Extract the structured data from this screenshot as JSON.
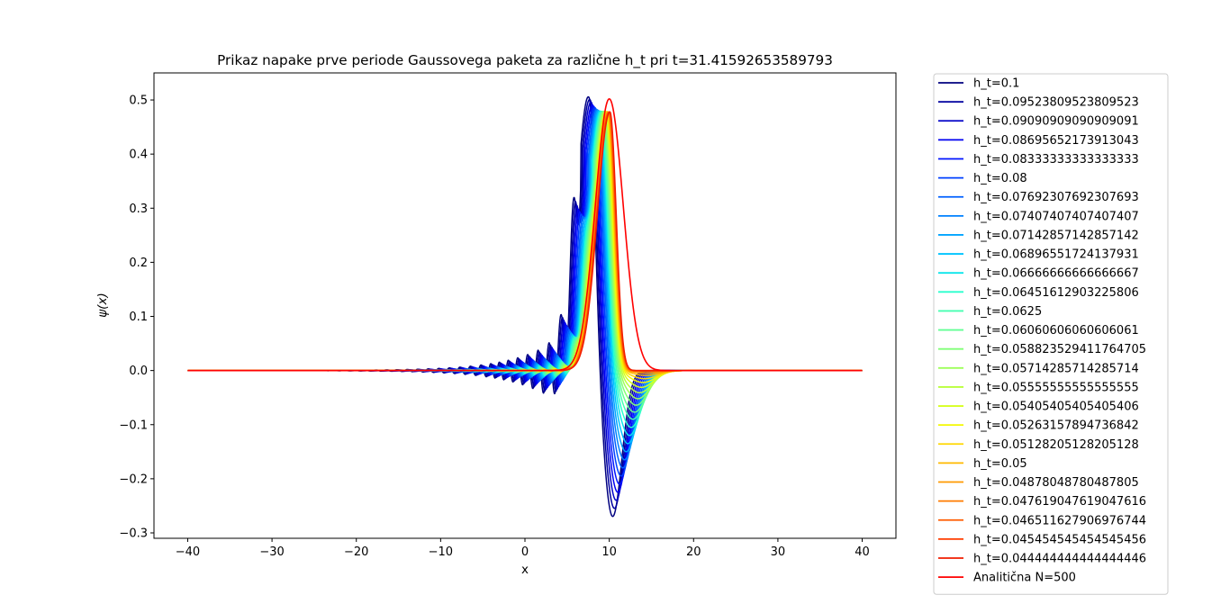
{
  "chart_data": {
    "type": "line",
    "title": "Prikaz napake prve periode Gaussovega paketa za različne h_t pri t=31.41592653589793",
    "xlabel": "x",
    "ylabel": "ψ(x)",
    "xlim": [
      -44,
      44
    ],
    "ylim": [
      -0.31,
      0.55
    ],
    "xticks": [
      -40,
      -30,
      -20,
      -10,
      0,
      10,
      20,
      30,
      40
    ],
    "xtick_labels": [
      "−40",
      "−30",
      "−20",
      "−10",
      "0",
      "10",
      "20",
      "30",
      "40"
    ],
    "yticks": [
      -0.3,
      -0.2,
      -0.1,
      0.0,
      0.1,
      0.2,
      0.3,
      0.4,
      0.5
    ],
    "ytick_labels": [
      "−0.3",
      "−0.2",
      "−0.1",
      "0.0",
      "0.1",
      "0.2",
      "0.3",
      "0.4",
      "0.5"
    ],
    "grid": false,
    "legend_position": "outside-right",
    "series": [
      {
        "name": "h_t=0.1",
        "color": "#00007f",
        "peak_x": 7.6,
        "peak_y": 0.515,
        "trough_x": 10.4,
        "trough_y": -0.27
      },
      {
        "name": "h_t=0.09523809523809523",
        "color": "#00009f",
        "peak_x": 7.75,
        "peak_y": 0.51,
        "trough_x": 10.6,
        "trough_y": -0.255
      },
      {
        "name": "h_t=0.09090909090909091",
        "color": "#0000c8",
        "peak_x": 7.9,
        "peak_y": 0.505,
        "trough_x": 10.8,
        "trough_y": -0.24
      },
      {
        "name": "h_t=0.08695652173913043",
        "color": "#0000f1",
        "peak_x": 8.05,
        "peak_y": 0.5,
        "trough_x": 11.0,
        "trough_y": -0.225
      },
      {
        "name": "h_t=0.08333333333333333",
        "color": "#0014ff",
        "peak_x": 8.2,
        "peak_y": 0.497,
        "trough_x": 11.2,
        "trough_y": -0.21
      },
      {
        "name": "h_t=0.08",
        "color": "#0040ff",
        "peak_x": 8.35,
        "peak_y": 0.494,
        "trough_x": 11.4,
        "trough_y": -0.195
      },
      {
        "name": "h_t=0.07692307692307693",
        "color": "#0060ff",
        "peak_x": 8.5,
        "peak_y": 0.491,
        "trough_x": 11.6,
        "trough_y": -0.18
      },
      {
        "name": "h_t=0.07407407407407407",
        "color": "#0080ff",
        "peak_x": 8.62,
        "peak_y": 0.489,
        "trough_x": 11.8,
        "trough_y": -0.165
      },
      {
        "name": "h_t=0.07142857142857142",
        "color": "#00a4ff",
        "peak_x": 8.74,
        "peak_y": 0.487,
        "trough_x": 12.0,
        "trough_y": -0.15
      },
      {
        "name": "h_t=0.06896551724137931",
        "color": "#00c4ff",
        "peak_x": 8.86,
        "peak_y": 0.485,
        "trough_x": 12.2,
        "trough_y": -0.135
      },
      {
        "name": "h_t=0.06666666666666667",
        "color": "#0ce5eb",
        "peak_x": 8.97,
        "peak_y": 0.484,
        "trough_x": 12.4,
        "trough_y": -0.12
      },
      {
        "name": "h_t=0.06451612903225806",
        "color": "#29ffce",
        "peak_x": 9.07,
        "peak_y": 0.483,
        "trough_x": 12.6,
        "trough_y": -0.105
      },
      {
        "name": "h_t=0.0625",
        "color": "#46ffb1",
        "peak_x": 9.17,
        "peak_y": 0.482,
        "trough_x": 12.8,
        "trough_y": -0.09
      },
      {
        "name": "h_t=0.06060606060606061",
        "color": "#63ff94",
        "peak_x": 9.27,
        "peak_y": 0.481,
        "trough_x": 13.0,
        "trough_y": -0.077
      },
      {
        "name": "h_t=0.058823529411764705",
        "color": "#80ff77",
        "peak_x": 9.36,
        "peak_y": 0.481,
        "trough_x": 13.2,
        "trough_y": -0.064
      },
      {
        "name": "h_t=0.05714285714285714",
        "color": "#9dff5a",
        "peak_x": 9.45,
        "peak_y": 0.48,
        "trough_x": 13.4,
        "trough_y": -0.052
      },
      {
        "name": "h_t=0.05555555555555555",
        "color": "#baff3d",
        "peak_x": 9.53,
        "peak_y": 0.48,
        "trough_x": 13.6,
        "trough_y": -0.041
      },
      {
        "name": "h_t=0.05405405405405406",
        "color": "#d7ff1f",
        "peak_x": 9.61,
        "peak_y": 0.479,
        "trough_x": 13.8,
        "trough_y": -0.031
      },
      {
        "name": "h_t=0.05263157894736842",
        "color": "#f4f802",
        "peak_x": 9.68,
        "peak_y": 0.479,
        "trough_x": 14.0,
        "trough_y": -0.022
      },
      {
        "name": "h_t=0.05128205128205128",
        "color": "#ffd800",
        "peak_x": 9.75,
        "peak_y": 0.479,
        "trough_x": 14.2,
        "trough_y": -0.015
      },
      {
        "name": "h_t=0.05",
        "color": "#ffb900",
        "peak_x": 9.82,
        "peak_y": 0.478,
        "trough_x": 14.4,
        "trough_y": -0.009
      },
      {
        "name": "h_t=0.04878048780487805",
        "color": "#ff9a00",
        "peak_x": 9.88,
        "peak_y": 0.478,
        "trough_x": 14.6,
        "trough_y": -0.005
      },
      {
        "name": "h_t=0.047619047619047616",
        "color": "#ff7b00",
        "peak_x": 9.94,
        "peak_y": 0.478,
        "trough_x": 14.8,
        "trough_y": -0.002
      },
      {
        "name": "h_t=0.046511627906976744",
        "color": "#ff5c00",
        "peak_x": 9.99,
        "peak_y": 0.478,
        "trough_x": 15.0,
        "trough_y": -0.001
      },
      {
        "name": "h_t=0.045454545454545456",
        "color": "#ff3d00",
        "peak_x": 10.04,
        "peak_y": 0.478,
        "trough_x": 15.2,
        "trough_y": 0.0
      },
      {
        "name": "h_t=0.044444444444444446",
        "color": "#f11e00",
        "peak_x": 10.08,
        "peak_y": 0.478,
        "trough_x": 15.4,
        "trough_y": 0.0
      },
      {
        "name": "Analitična N=500",
        "color": "#ff0000",
        "peak_x": 10.0,
        "peak_y": 0.502
      }
    ]
  }
}
